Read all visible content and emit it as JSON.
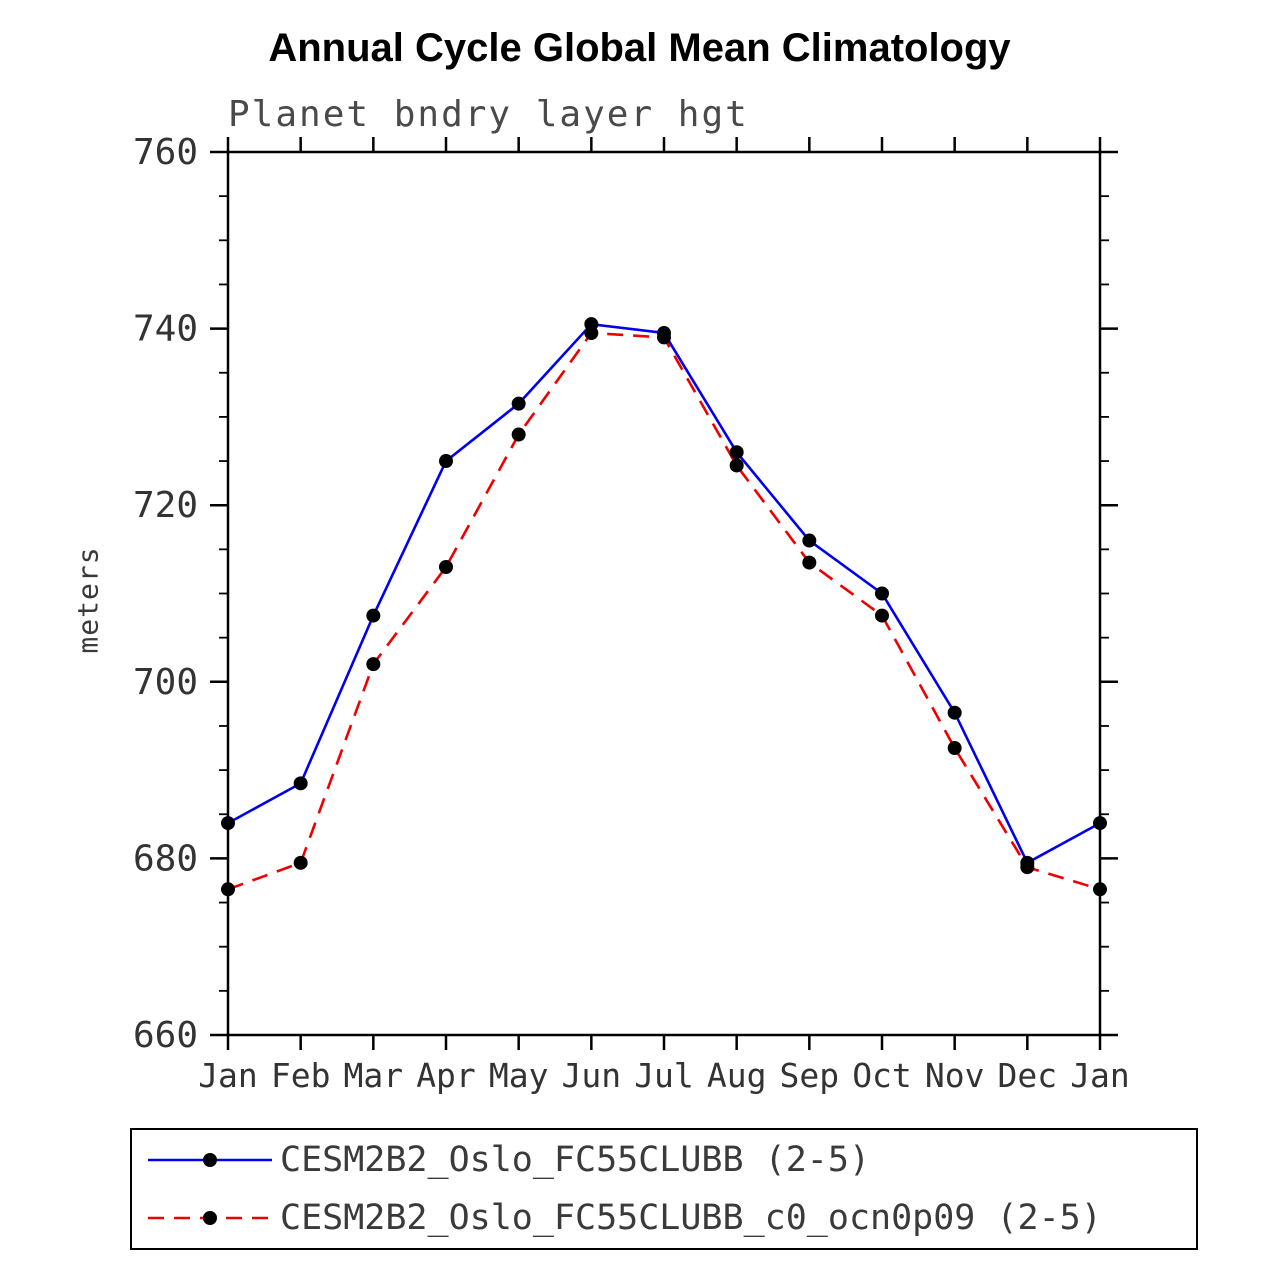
{
  "chart_data": {
    "type": "line",
    "title": "Annual Cycle Global Mean Climatology",
    "subtitle": "Planet bndry layer hgt",
    "ylabel": "meters",
    "categories": [
      "Jan",
      "Feb",
      "Mar",
      "Apr",
      "May",
      "Jun",
      "Jul",
      "Aug",
      "Sep",
      "Oct",
      "Nov",
      "Dec",
      "Jan"
    ],
    "ylim": [
      660,
      760
    ],
    "yticks": [
      660,
      680,
      700,
      720,
      740,
      760
    ],
    "y_minor_step": 5,
    "grid": false,
    "legend_position": "bottom",
    "marker": "filled-circle",
    "marker_color": "#000000",
    "axis_color": "#000000",
    "series": [
      {
        "name": "CESM2B2_Oslo_FC55CLUBB (2-5)",
        "color": "#0000ee",
        "style": "solid",
        "values": [
          684,
          688.5,
          707.5,
          725,
          731.5,
          740.5,
          739.5,
          726,
          716,
          710,
          696.5,
          679.5,
          684
        ]
      },
      {
        "name": "CESM2B2_Oslo_FC55CLUBB_c0_ocn0p09 (2-5)",
        "color": "#ee0000",
        "style": "dashed",
        "values": [
          676.5,
          679.5,
          702,
          713,
          728,
          739.5,
          739,
          724.5,
          713.5,
          707.5,
          692.5,
          679,
          676.5
        ]
      }
    ]
  }
}
